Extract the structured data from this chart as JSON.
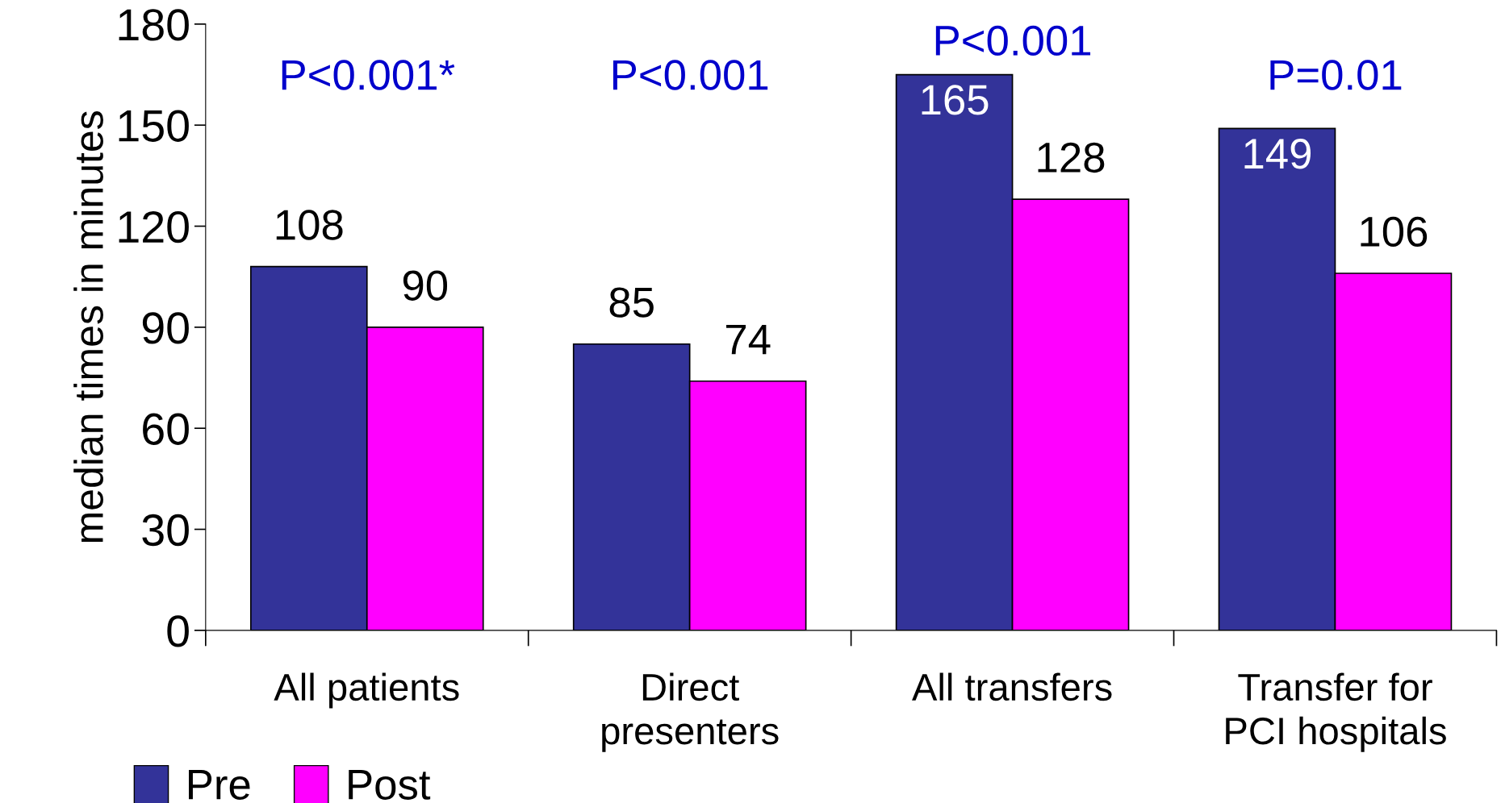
{
  "chart_data": {
    "type": "bar",
    "ylabel": "median times in minutes",
    "categories": [
      "All patients",
      "Direct\npresenters",
      "All transfers",
      "Transfer for\nPCI hospitals"
    ],
    "series": [
      {
        "name": "Pre",
        "color": "#333399",
        "values": [
          108,
          85,
          165,
          149
        ]
      },
      {
        "name": "Post",
        "color": "#ff00ff",
        "values": [
          90,
          74,
          128,
          106
        ]
      }
    ],
    "annotations": [
      "P<0.001*",
      "P<0.001",
      "P<0.001",
      "P=0.01"
    ],
    "ylim": [
      0,
      180
    ],
    "yticks": [
      0,
      30,
      60,
      90,
      120,
      150,
      180
    ],
    "data_labels": true,
    "legend": "bottom left",
    "grid": false
  }
}
